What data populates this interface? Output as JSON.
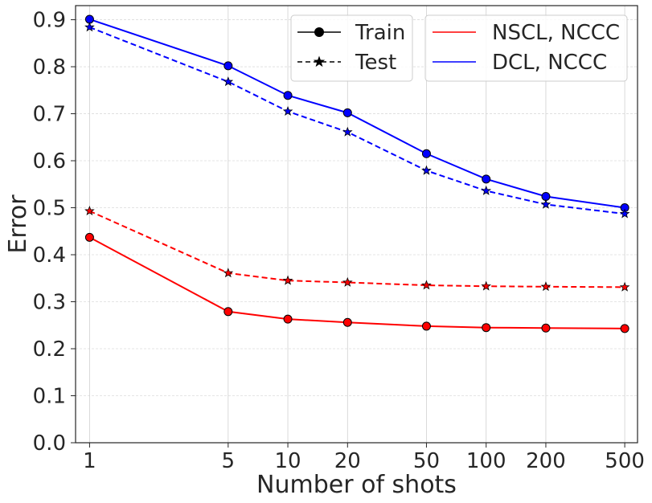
{
  "chart_data": {
    "type": "line",
    "xscale": "log",
    "x": [
      1,
      5,
      10,
      20,
      50,
      100,
      200,
      500
    ],
    "x_tick_labels": [
      "1",
      "5",
      "10",
      "20",
      "50",
      "100",
      "200",
      "500"
    ],
    "y_ticks": [
      0.0,
      0.1,
      0.2,
      0.3,
      0.4,
      0.5,
      0.6,
      0.7,
      0.8,
      0.9
    ],
    "y_tick_labels": [
      "0.0",
      "0.1",
      "0.2",
      "0.3",
      "0.4",
      "0.5",
      "0.6",
      "0.7",
      "0.8",
      "0.9"
    ],
    "xlim": [
      0.85,
      580
    ],
    "ylim": [
      0.0,
      0.93
    ],
    "xlabel": "Number of shots",
    "ylabel": "Error",
    "title": "",
    "grid": true,
    "series": [
      {
        "name": "NSCL, NCCC Train",
        "method": "NSCL, NCCC",
        "split": "Train",
        "color": "#ff0000",
        "marker": "circle",
        "linestyle": "solid",
        "values": [
          0.437,
          0.279,
          0.263,
          0.256,
          0.248,
          0.245,
          0.244,
          0.243
        ]
      },
      {
        "name": "NSCL, NCCC Test",
        "method": "NSCL, NCCC",
        "split": "Test",
        "color": "#ff0000",
        "marker": "star",
        "linestyle": "dashed",
        "values": [
          0.493,
          0.361,
          0.345,
          0.341,
          0.335,
          0.333,
          0.332,
          0.331
        ]
      },
      {
        "name": "DCL, NCCC Train",
        "method": "DCL, NCCC",
        "split": "Train",
        "color": "#0000ff",
        "marker": "circle",
        "linestyle": "solid",
        "values": [
          0.901,
          0.802,
          0.739,
          0.702,
          0.615,
          0.561,
          0.524,
          0.5
        ]
      },
      {
        "name": "DCL, NCCC Test",
        "method": "DCL, NCCC",
        "split": "Test",
        "color": "#0000ff",
        "marker": "star",
        "linestyle": "dashed",
        "values": [
          0.884,
          0.768,
          0.705,
          0.661,
          0.579,
          0.536,
          0.507,
          0.487
        ]
      }
    ],
    "legend_style": {
      "location": "top-right",
      "entries": [
        {
          "label": "Train",
          "marker": "circle",
          "linestyle": "solid",
          "color": "#000000"
        },
        {
          "label": "Test",
          "marker": "star",
          "linestyle": "dashed",
          "color": "#000000"
        }
      ]
    },
    "legend_method": {
      "location": "top-right",
      "entries": [
        {
          "label": "NSCL, NCCC",
          "color": "#ff0000"
        },
        {
          "label": "DCL, NCCC",
          "color": "#0000ff"
        }
      ]
    }
  }
}
